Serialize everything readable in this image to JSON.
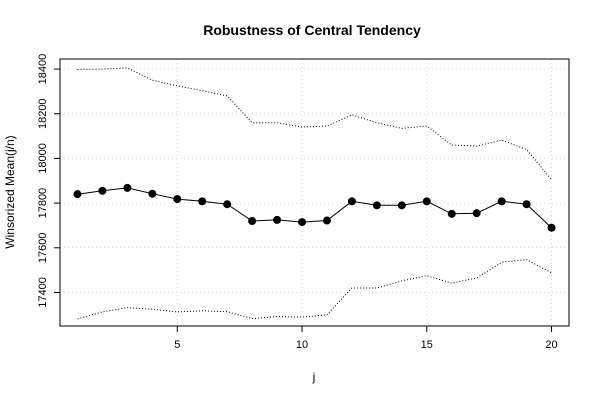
{
  "chart_data": {
    "type": "line",
    "title": "Robustness of Central Tendency",
    "xlabel": "j",
    "ylabel": "Winsorized Mean(j/n)",
    "xlim": [
      0.3,
      20.7
    ],
    "ylim": [
      17250,
      18445
    ],
    "x_ticks": [
      5,
      10,
      15,
      20
    ],
    "y_ticks": [
      17400,
      17600,
      17800,
      18000,
      18200,
      18400
    ],
    "grid": true,
    "x": [
      1,
      2,
      3,
      4,
      5,
      6,
      7,
      8,
      9,
      10,
      11,
      12,
      13,
      14,
      15,
      16,
      17,
      18,
      19,
      20
    ],
    "series": [
      {
        "style": "solid-points",
        "values": [
          17840,
          17855,
          17868,
          17842,
          17818,
          17808,
          17795,
          17720,
          17725,
          17715,
          17722,
          17808,
          17790,
          17790,
          17808,
          17752,
          17755,
          17808,
          17795,
          17690
        ]
      },
      {
        "style": "dotted",
        "values": [
          18398,
          18400,
          18405,
          18350,
          18325,
          18303,
          18280,
          18160,
          18160,
          18140,
          18145,
          18195,
          18160,
          18135,
          18145,
          18060,
          18055,
          18082,
          18040,
          17905
        ]
      },
      {
        "style": "dotted",
        "values": [
          17282,
          17313,
          17332,
          17325,
          17313,
          17318,
          17314,
          17283,
          17292,
          17290,
          17300,
          17420,
          17420,
          17452,
          17475,
          17442,
          17465,
          17535,
          17547,
          17488
        ]
      }
    ]
  }
}
